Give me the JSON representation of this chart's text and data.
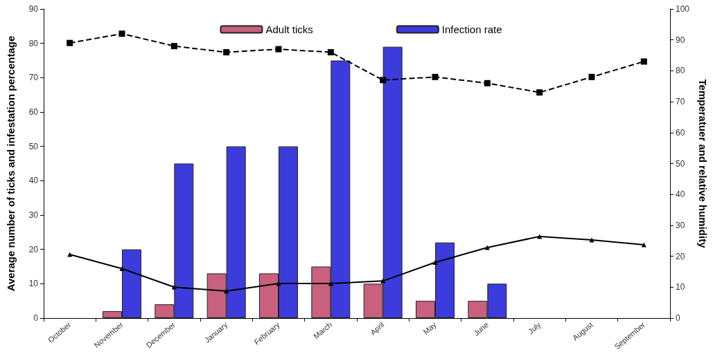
{
  "chart_data": {
    "type": "bar",
    "categories": [
      "October",
      "November",
      "December",
      "January",
      "February",
      "March",
      "April",
      "May",
      "June",
      "July",
      "August",
      "September"
    ],
    "ylabel": "Average number of ticks and infestation percentage",
    "y2label": "Temperatuer and relative humidity",
    "ylim": [
      0,
      90
    ],
    "yticks": [
      0,
      10,
      20,
      30,
      40,
      50,
      60,
      70,
      80,
      90
    ],
    "y2lim": [
      0,
      100
    ],
    "y2ticks": [
      0,
      10,
      20,
      30,
      40,
      50,
      60,
      70,
      80,
      90,
      100
    ],
    "series": [
      {
        "name": "Adult ticks",
        "color": "#c8607e",
        "values": [
          0,
          2,
          4,
          13,
          13,
          15,
          10,
          5,
          5,
          0,
          0,
          0
        ]
      },
      {
        "name": "Infection rate",
        "color": "#3c3cdc",
        "values": [
          0,
          20,
          45,
          50,
          50,
          75,
          79,
          22,
          10,
          0,
          0,
          0
        ]
      },
      {
        "type": "line",
        "axis": "y2",
        "color": "#000000",
        "marker": "square",
        "line_style": "dashed",
        "values": [
          89,
          92,
          88,
          86,
          87,
          86,
          77,
          78,
          76,
          73,
          78,
          83
        ]
      },
      {
        "type": "line",
        "axis": "y2",
        "color": "#000000",
        "marker": "triangle",
        "line_style": "solid",
        "values": [
          20.6,
          16,
          10,
          8.7,
          11.2,
          11.2,
          12,
          18,
          22.8,
          26.4,
          25.3,
          23.7
        ]
      }
    ],
    "grid": false,
    "legend": "top"
  }
}
